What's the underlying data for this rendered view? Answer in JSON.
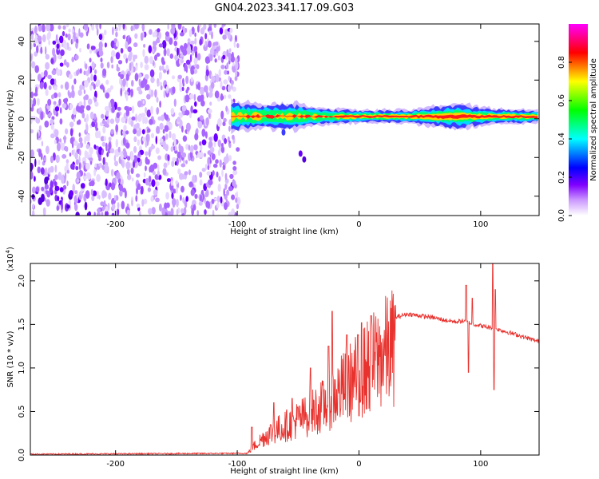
{
  "title": "GN04.2023.341.17.09.G03",
  "chart_data": [
    {
      "type": "heatmap",
      "xlabel": "Height of straight line (km)",
      "ylabel": "Frequency (Hz)",
      "xlim": [
        -270,
        148
      ],
      "ylim": [
        -50,
        49
      ],
      "xticks": [
        -200,
        -100,
        0,
        100
      ],
      "yticks": [
        -40,
        -20,
        0,
        20,
        40
      ],
      "noise_region_x": [
        -270,
        -105
      ],
      "signal_band": [
        {
          "x": -105,
          "half_width_hz": 3.5
        },
        {
          "x": -80,
          "half_width_hz": 3.0
        },
        {
          "x": -50,
          "half_width_hz": 3.0
        },
        {
          "x": -30,
          "half_width_hz": 2.0
        },
        {
          "x": 0,
          "half_width_hz": 1.5
        },
        {
          "x": 40,
          "half_width_hz": 1.5
        },
        {
          "x": 80,
          "half_width_hz": 3.0
        },
        {
          "x": 110,
          "half_width_hz": 1.8
        },
        {
          "x": 148,
          "half_width_hz": 1.5
        }
      ],
      "colorbar": {
        "label": "Normalized spectral amplitude",
        "range": [
          0,
          1
        ],
        "ticks": [
          "0.0",
          "0.2",
          "0.4",
          "0.6",
          "0.8"
        ],
        "colors": [
          "#ffffff",
          "#8000ff",
          "#0000ff",
          "#00ffff",
          "#00ff00",
          "#ffff00",
          "#ff0000",
          "#ff00ff"
        ]
      }
    },
    {
      "type": "line",
      "xlabel": "Height of straight line (km)",
      "ylabel": "SNR (10 * v/v)",
      "multiplier": "(x10",
      "multiplier_exp": "4",
      "multiplier_close": ")",
      "xlim": [
        -270,
        148
      ],
      "ylim": [
        0,
        22000
      ],
      "xticks": [
        -200,
        -100,
        0,
        100
      ],
      "yticks": [
        0,
        5000,
        10000,
        15000,
        20000
      ],
      "ytick_labels": [
        "0.0",
        "0.5",
        "1.0",
        "1.5",
        "2.0"
      ],
      "color": "#e8322e",
      "envelope": {
        "x": [
          -270,
          -92,
          -85,
          -75,
          -60,
          -45,
          -30,
          -20,
          -10,
          0,
          10,
          20,
          30,
          40,
          50,
          60,
          70,
          80,
          85,
          95,
          105,
          115,
          130,
          148
        ],
        "y": [
          100,
          200,
          1500,
          3000,
          4200,
          5500,
          7000,
          8500,
          10000,
          11500,
          13000,
          14500,
          15800,
          16200,
          16000,
          15800,
          15500,
          15300,
          15400,
          15000,
          14700,
          14400,
          13800,
          13000
        ]
      },
      "spikes": [
        {
          "x": -88,
          "y": 3200
        },
        {
          "x": -70,
          "y": 6000
        },
        {
          "x": -55,
          "y": 6500
        },
        {
          "x": -40,
          "y": 10000
        },
        {
          "x": -25,
          "y": 12500
        },
        {
          "x": -22,
          "y": 16500
        },
        {
          "x": -10,
          "y": 13800
        },
        {
          "x": 2,
          "y": 15200
        },
        {
          "x": 10,
          "y": 16000
        },
        {
          "x": 88,
          "y": 19500
        },
        {
          "x": 93,
          "y": 18000
        },
        {
          "x": 110,
          "y": 22000
        },
        {
          "x": 112,
          "y": 19000
        }
      ],
      "dips": [
        {
          "x": 0,
          "y": 4500
        },
        {
          "x": 90,
          "y": 9500
        },
        {
          "x": 111,
          "y": 7500
        }
      ]
    }
  ]
}
